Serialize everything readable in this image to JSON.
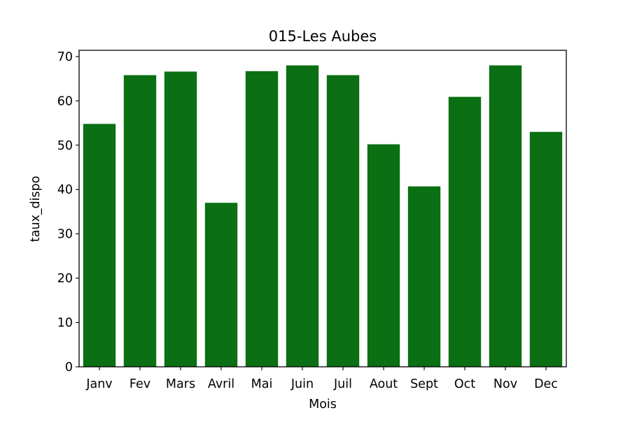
{
  "chart_data": {
    "type": "bar",
    "title": "015-Les Aubes",
    "xlabel": "Mois",
    "ylabel": "taux_dispo",
    "categories": [
      "Janv",
      "Fev",
      "Mars",
      "Avril",
      "Mai",
      "Juin",
      "Juil",
      "Aout",
      "Sept",
      "Oct",
      "Nov",
      "Dec"
    ],
    "values": [
      54.8,
      65.8,
      66.6,
      37.0,
      66.7,
      68.0,
      65.8,
      50.2,
      40.7,
      60.9,
      68.0,
      53.0
    ],
    "ylim": [
      0,
      71.4
    ],
    "yticks": [
      0,
      10,
      20,
      30,
      40,
      50,
      60,
      70
    ],
    "bar_color": "#0a7013",
    "grid": false,
    "legend": "none"
  }
}
